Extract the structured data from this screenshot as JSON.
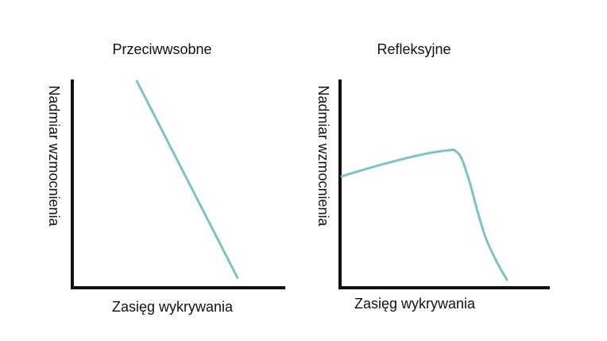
{
  "chart_data": [
    {
      "type": "line",
      "title": "Przeciwwsobne",
      "xlabel": "Zasięg wykrywania",
      "ylabel": "Nadmiar wzmocnienia",
      "xlim": [
        0,
        100
      ],
      "ylim": [
        0,
        100
      ],
      "grid": false,
      "series": [
        {
          "color": "#7cc3c8",
          "x": [
            30,
            78
          ],
          "y": [
            100,
            3
          ]
        }
      ]
    },
    {
      "type": "line",
      "title": "Refleksyjne",
      "xlabel": "Zasięg wykrywania",
      "ylabel": "Nadmiar wzmocnienia",
      "xlim": [
        0,
        100
      ],
      "ylim": [
        0,
        100
      ],
      "grid": false,
      "series": [
        {
          "color": "#7cc3c8",
          "x": [
            0,
            20,
            40,
            53,
            55,
            58,
            62,
            66,
            70,
            75,
            80
          ],
          "y": [
            53,
            59,
            64,
            66,
            65.5,
            62,
            50,
            35,
            22,
            11,
            2
          ]
        }
      ]
    }
  ]
}
